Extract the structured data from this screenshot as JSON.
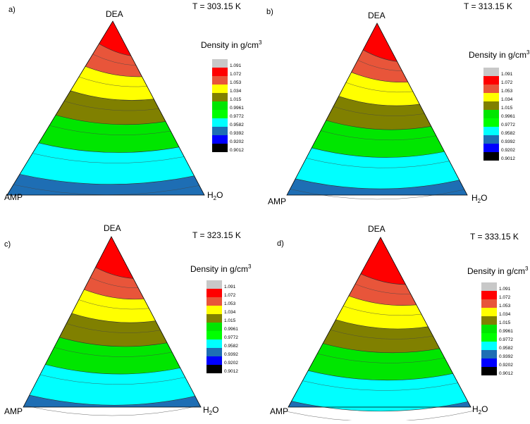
{
  "chart_data": [
    {
      "type": "ternary-contour",
      "panel_label": "a)",
      "temperature": "T = 303.15 K",
      "vertices": {
        "top": "DEA",
        "left": "AMP",
        "right": "H2O"
      },
      "legend_title": "Density in g/cm",
      "legend_title_sup": "3",
      "band_shift": 0
    },
    {
      "type": "ternary-contour",
      "panel_label": "b)",
      "temperature": "T = 313.15 K",
      "vertices": {
        "top": "DEA",
        "left": "AMP",
        "right": "H2O"
      },
      "legend_title": "Density in g/cm",
      "legend_title_sup": "3",
      "band_shift": 0.025
    },
    {
      "type": "ternary-contour",
      "panel_label": "c)",
      "temperature": "T = 323.15 K",
      "vertices": {
        "top": "DEA",
        "left": "AMP",
        "right": "H2O"
      },
      "legend_title": "Density in g/cm",
      "legend_title_sup": "3",
      "band_shift": 0.05
    },
    {
      "type": "ternary-contour",
      "panel_label": "d)",
      "temperature": "T = 333.15 K",
      "vertices": {
        "top": "DEA",
        "left": "AMP",
        "right": "H2O"
      },
      "legend_title": "Density in g/cm",
      "legend_title_sup": "3",
      "band_shift": 0.085
    }
  ],
  "legend_levels": [
    {
      "value": "1.091",
      "color": "#c8c8c8"
    },
    {
      "value": "1.072",
      "color": "#ff0000"
    },
    {
      "value": "1.053",
      "color": "#e8553a"
    },
    {
      "value": "1.034",
      "color": "#ffff00"
    },
    {
      "value": "1.015",
      "color": "#808000"
    },
    {
      "value": "0.9961",
      "color": "#00e600"
    },
    {
      "value": "0.9772",
      "color": "#00ff00"
    },
    {
      "value": "0.9582",
      "color": "#00ffff"
    },
    {
      "value": "0.9392",
      "color": "#1e6eb4"
    },
    {
      "value": "0.9202",
      "color": "#0000ff"
    },
    {
      "value": "0.9012",
      "color": "#000000"
    }
  ],
  "vertex_sub": "2",
  "vertex_o": "O"
}
